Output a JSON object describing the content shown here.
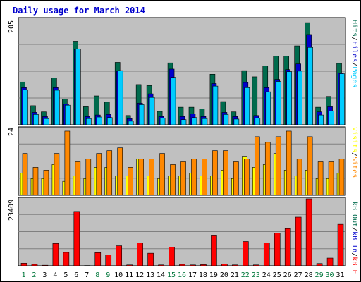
{
  "title": "Daily usage for March 2014",
  "colors": {
    "hits": "#006b4d",
    "files": "#0000cc",
    "pages": "#00ccff",
    "sites": "#ff8800",
    "visits": "#ffff00",
    "kbin": "#ff0000",
    "kbout": "#cc0000",
    "weekday_label": "#000000",
    "weekend_label": "#00773b",
    "panel_bg": "#c0c0c0"
  },
  "chart_data": [
    {
      "type": "bar",
      "panel": "hits-files-pages",
      "ymax_label": "205",
      "ylim": [
        0,
        205
      ],
      "legend": [
        "Pages",
        "/",
        "Files",
        "/",
        "Hits"
      ],
      "categories": [
        "1",
        "2",
        "3",
        "4",
        "5",
        "6",
        "7",
        "8",
        "9",
        "10",
        "11",
        "12",
        "13",
        "14",
        "15",
        "16",
        "17",
        "18",
        "19",
        "20",
        "21",
        "22",
        "23",
        "24",
        "25",
        "26",
        "27",
        "28",
        "29",
        "30",
        "31"
      ],
      "weekend": [
        "1",
        "2",
        "8",
        "9",
        "15",
        "16",
        "22",
        "23",
        "29",
        "30"
      ],
      "series": [
        {
          "name": "Hits",
          "values": [
            83,
            37,
            25,
            91,
            50,
            162,
            35,
            56,
            44,
            121,
            18,
            78,
            76,
            26,
            120,
            34,
            34,
            31,
            98,
            45,
            25,
            105,
            93,
            114,
            133,
            133,
            153,
            198,
            34,
            55,
            119
          ]
        },
        {
          "name": "Files",
          "values": [
            72,
            24,
            16,
            72,
            40,
            146,
            16,
            19,
            20,
            104,
            12,
            42,
            60,
            16,
            108,
            16,
            21,
            16,
            80,
            24,
            16,
            82,
            18,
            72,
            88,
            107,
            118,
            175,
            25,
            35,
            100
          ]
        },
        {
          "name": "Pages",
          "values": [
            68,
            20,
            12,
            67,
            38,
            147,
            12,
            15,
            14,
            105,
            7,
            39,
            53,
            13,
            92,
            10,
            14,
            12,
            75,
            20,
            11,
            72,
            13,
            64,
            84,
            103,
            104,
            150,
            19,
            27,
            99
          ]
        }
      ]
    },
    {
      "type": "bar",
      "panel": "visits-sites",
      "ymax_label": "24",
      "ylim": [
        0,
        24
      ],
      "legend": [
        "Visits",
        "/",
        "Sites"
      ],
      "series": [
        {
          "name": "Visits",
          "values": [
            8,
            6,
            6,
            11,
            5,
            7,
            6,
            10,
            10,
            7,
            7,
            13,
            7,
            6,
            7,
            7,
            8,
            7,
            7,
            9,
            6,
            14,
            10,
            11,
            15,
            9,
            7,
            9,
            6,
            6,
            8
          ]
        },
        {
          "name": "Sites",
          "values": [
            15,
            10,
            9,
            15,
            23,
            12,
            13,
            15,
            16,
            17,
            10,
            13,
            13,
            15,
            11,
            12,
            13,
            13,
            16,
            16,
            12,
            13,
            21,
            19,
            21,
            23,
            13,
            21,
            12,
            12,
            13
          ]
        }
      ]
    },
    {
      "type": "bar",
      "panel": "kbin-kbout",
      "ymax_label": "23409",
      "ylim": [
        0,
        23409
      ],
      "legend": [
        "kB F",
        "/",
        "kB In",
        "/",
        "kB Out"
      ],
      "series": [
        {
          "name": "kB F",
          "values": [
            900,
            500,
            200,
            7800,
            4700,
            19000,
            100,
            4600,
            3800,
            7000,
            300,
            8000,
            4400,
            300,
            6500,
            500,
            300,
            400,
            10500,
            600,
            300,
            8500,
            300,
            8000,
            11500,
            13000,
            17000,
            23409,
            800,
            2700,
            14500
          ]
        }
      ]
    }
  ]
}
